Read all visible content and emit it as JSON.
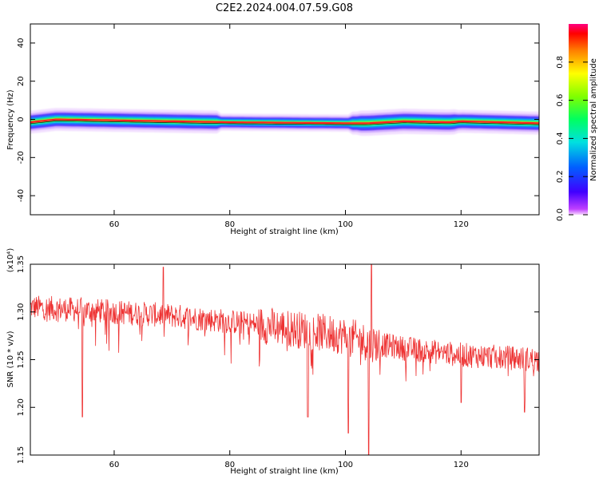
{
  "figure": {
    "title": "C2E2.2024.004.07.59.G08"
  },
  "chart_data": [
    {
      "type": "heatmap",
      "xlabel": "Height of straight line (km)",
      "ylabel": "Frequency (Hz)",
      "xlim": [
        45.5,
        133.5
      ],
      "ylim": [
        -50,
        50
      ],
      "x_ticks": [
        60,
        80,
        100,
        120
      ],
      "y_ticks": [
        40,
        20,
        0,
        -20,
        -40
      ],
      "colorbar": {
        "label": "Normalized spectral amplitude",
        "range": [
          0.0,
          1.0
        ],
        "ticks": [
          0.0,
          0.2,
          0.4,
          0.6,
          0.8
        ],
        "colormap": "rainbow (magenta-blue-cyan-green-yellow-red)"
      },
      "ridge": {
        "description": "narrow band of high amplitude near 0 Hz",
        "height_km": [
          45.5,
          50,
          60,
          80,
          100,
          104,
          110,
          118,
          120,
          133.5
        ],
        "center_freq_hz": [
          -1.5,
          0.0,
          -0.5,
          -1.5,
          -2.0,
          -2.0,
          -1.0,
          -1.5,
          -1.0,
          -2.0
        ]
      },
      "grid": false
    },
    {
      "type": "line",
      "xlabel": "Height of straight line (km)",
      "ylabel": "SNR (10 * v/v)",
      "y_multiplier": "(x10⁴)",
      "xlim": [
        45.5,
        133.5
      ],
      "ylim": [
        1.15,
        1.35
      ],
      "x_ticks": [
        60,
        80,
        100,
        120
      ],
      "y_ticks": [
        1.35,
        1.3,
        1.25,
        1.2,
        1.15
      ],
      "series_color": "#ee3333",
      "trend": {
        "height_km": [
          45.5,
          60,
          70,
          80,
          90,
          100,
          104,
          110,
          120,
          133.5
        ],
        "snr_x1e4": [
          1.305,
          1.3,
          1.296,
          1.29,
          1.283,
          1.275,
          1.268,
          1.262,
          1.255,
          1.25
        ]
      },
      "notable_extremes": [
        {
          "height_km": 54.5,
          "snr_x1e4": 1.19
        },
        {
          "height_km": 68.5,
          "snr_x1e4": 1.347
        },
        {
          "height_km": 93.5,
          "snr_x1e4": 1.19
        },
        {
          "height_km": 100.5,
          "snr_x1e4": 1.173
        },
        {
          "height_km": 104.0,
          "snr_x1e4": 1.15
        },
        {
          "height_km": 104.5,
          "snr_x1e4": 1.35
        },
        {
          "height_km": 120.0,
          "snr_x1e4": 1.205
        },
        {
          "height_km": 131.0,
          "snr_x1e4": 1.195
        }
      ],
      "grid": false
    }
  ]
}
